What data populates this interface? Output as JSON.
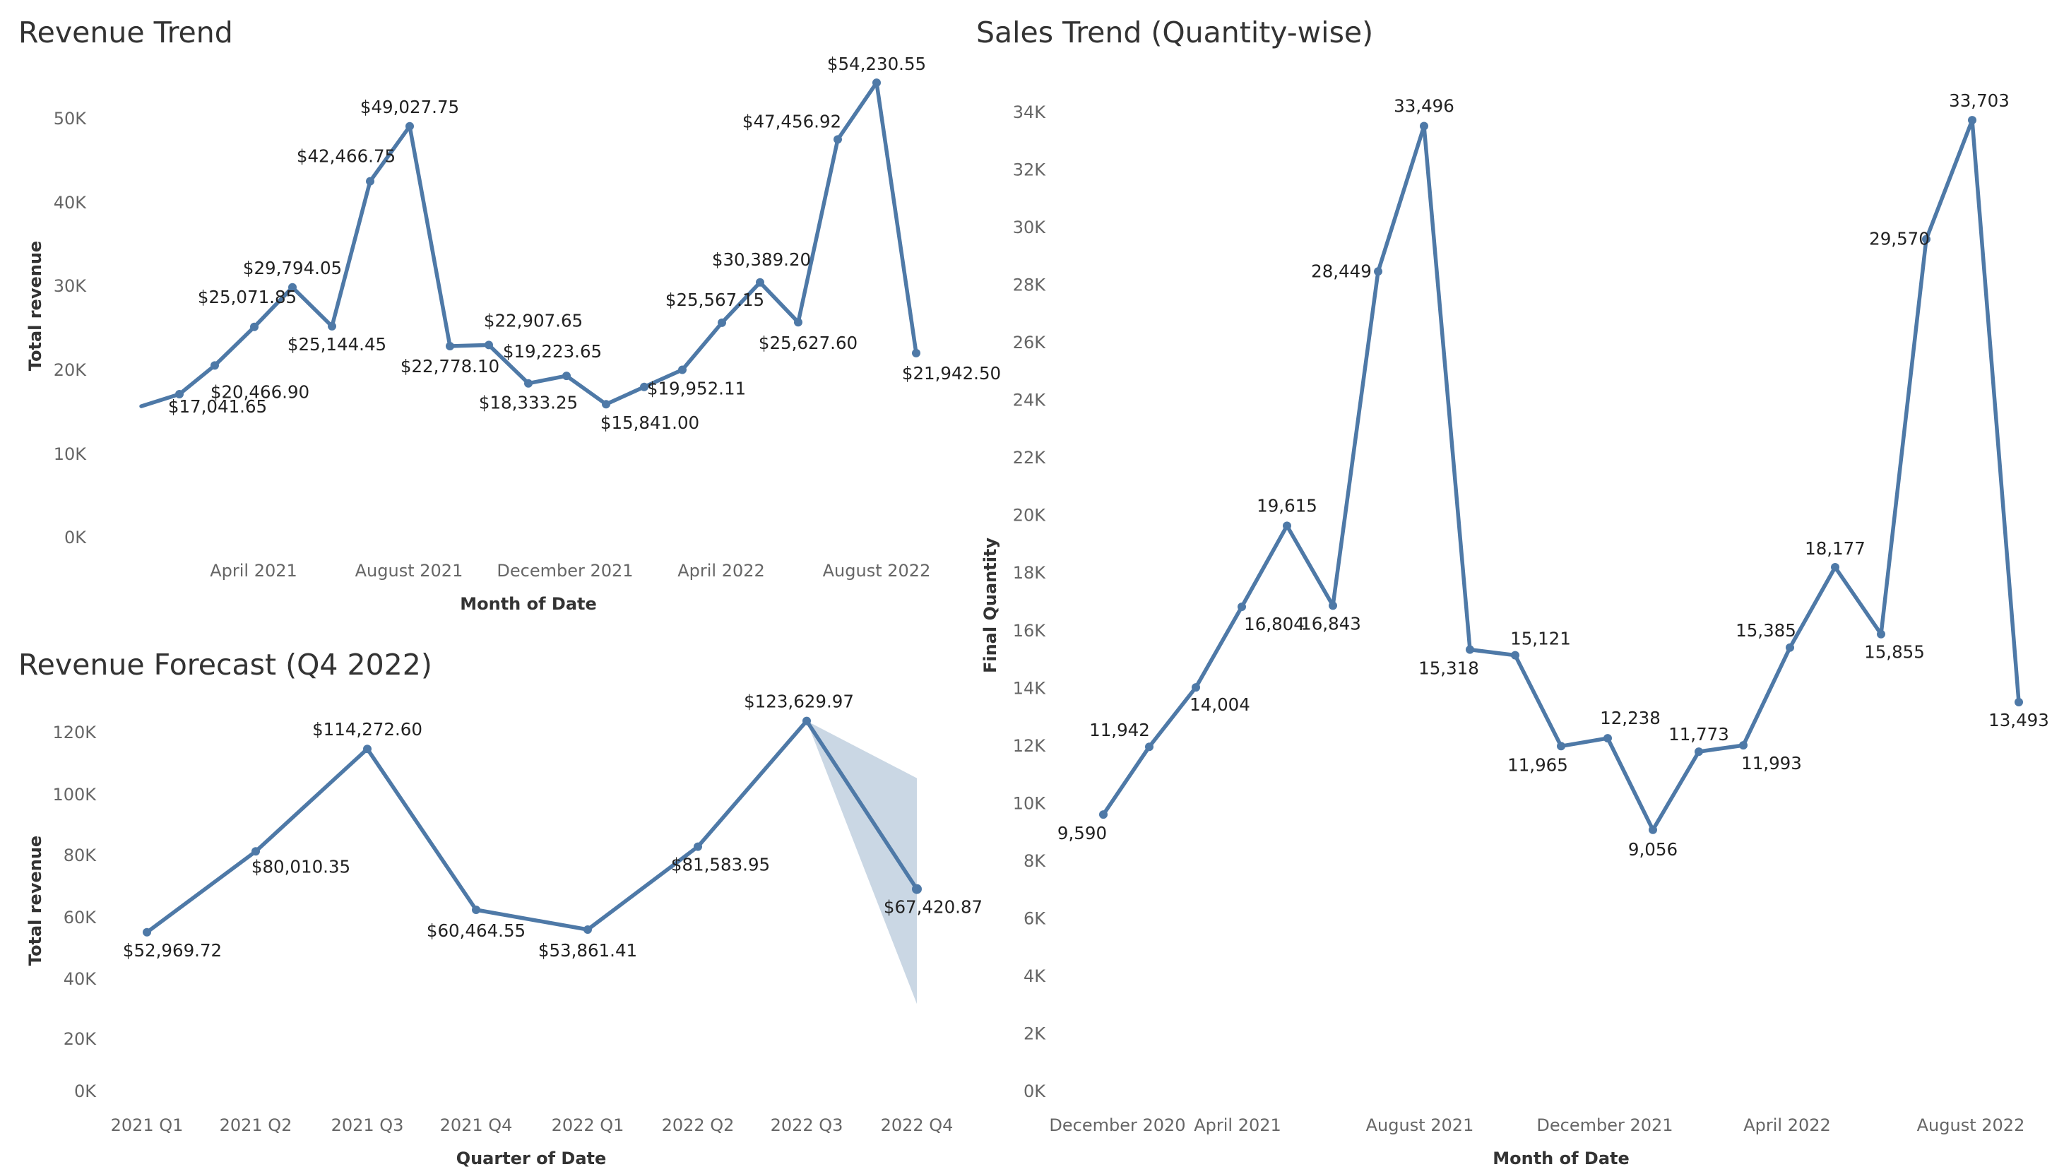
{
  "colors": {
    "series": "#4e79a7",
    "band": "#4e79a7"
  },
  "chart_data": [
    {
      "id": "revenue-trend",
      "type": "line",
      "title": "Revenue Trend",
      "xlabel": "Month of Date",
      "ylabel": "Total revenue",
      "ylim": [
        0,
        54000
      ],
      "yticks": [
        "0K",
        "10K",
        "20K",
        "30K",
        "40K",
        "50K"
      ],
      "xticks": [
        "April 2021",
        "August 2021",
        "December 2021",
        "April 2022",
        "August 2022"
      ],
      "series": [
        {
          "name": "Total revenue",
          "points": [
            {
              "label": "",
              "value": 15600
            },
            {
              "label": "$17,041.65",
              "value": 17041.65
            },
            {
              "label": "$20,466.90",
              "value": 20466.9
            },
            {
              "label": "$25,071.85",
              "value": 25071.85
            },
            {
              "label": "$29,794.05",
              "value": 29794.05
            },
            {
              "label": "$25,144.45",
              "value": 25144.45
            },
            {
              "label": "$42,466.75",
              "value": 42466.75
            },
            {
              "label": "$49,027.75",
              "value": 49027.75
            },
            {
              "label": "$22,778.10",
              "value": 22778.1
            },
            {
              "label": "$22,907.65",
              "value": 22907.65
            },
            {
              "label": "$18,333.25",
              "value": 18333.25
            },
            {
              "label": "$19,223.65",
              "value": 19223.65
            },
            {
              "label": "$15,841.00",
              "value": 15841.0
            },
            {
              "label": "",
              "value": 17900
            },
            {
              "label": "$19,952.11",
              "value": 19952.11
            },
            {
              "label": "$25,567.15",
              "value": 25567.15
            },
            {
              "label": "$30,389.20",
              "value": 30389.2
            },
            {
              "label": "$25,627.60",
              "value": 25627.6
            },
            {
              "label": "$47,456.92",
              "value": 47456.92
            },
            {
              "label": "$54,230.55",
              "value": 54230.55
            },
            {
              "label": "$21,942.50",
              "value": 21942.5
            }
          ]
        }
      ]
    },
    {
      "id": "revenue-forecast",
      "type": "line",
      "title": "Revenue Forecast (Q4 2022)",
      "xlabel": "Quarter of Date",
      "ylabel": "Total revenue",
      "ylim": [
        0,
        125000
      ],
      "yticks": [
        "0K",
        "20K",
        "40K",
        "60K",
        "80K",
        "100K",
        "120K"
      ],
      "categories": [
        "2021 Q1",
        "2021 Q2",
        "2021 Q3",
        "2021 Q4",
        "2022 Q1",
        "2022 Q2",
        "2022 Q3",
        "2022 Q4"
      ],
      "series": [
        {
          "name": "Total revenue",
          "values": [
            52969.72,
            80010.35,
            114272.6,
            60464.55,
            53861.41,
            81583.95,
            123629.97,
            67420.87
          ],
          "labels": [
            "$52,969.72",
            "$80,010.35",
            "$114,272.60",
            "$60,464.55",
            "$53,861.41",
            "$81,583.95",
            "$123,629.97",
            "$67,420.87"
          ],
          "forecast_index": 7,
          "forecast_band": {
            "upper": 104500,
            "lower": 29000
          }
        }
      ]
    },
    {
      "id": "sales-trend",
      "type": "line",
      "title": "Sales Trend (Quantity-wise)",
      "xlabel": "Month of Date",
      "ylabel": "Final Quantity",
      "ylim": [
        0,
        34000
      ],
      "yticks": [
        "0K",
        "2K",
        "4K",
        "6K",
        "8K",
        "10K",
        "12K",
        "14K",
        "16K",
        "18K",
        "20K",
        "22K",
        "24K",
        "26K",
        "28K",
        "30K",
        "32K",
        "34K"
      ],
      "xticks": [
        "December 2020",
        "April 2021",
        "August 2021",
        "December 2021",
        "April 2022",
        "August 2022"
      ],
      "series": [
        {
          "name": "Final Quantity",
          "points": [
            {
              "label": "9,590",
              "value": 9590
            },
            {
              "label": "11,942",
              "value": 11942
            },
            {
              "label": "14,004",
              "value": 14004
            },
            {
              "label": "16,804",
              "value": 16804
            },
            {
              "label": "19,615",
              "value": 19615
            },
            {
              "label": "16,843",
              "value": 16843
            },
            {
              "label": "28,449",
              "value": 28449
            },
            {
              "label": "33,496",
              "value": 33496
            },
            {
              "label": "15,318",
              "value": 15318
            },
            {
              "label": "15,121",
              "value": 15121
            },
            {
              "label": "11,965",
              "value": 11965
            },
            {
              "label": "12,238",
              "value": 12238
            },
            {
              "label": "9,056",
              "value": 9056
            },
            {
              "label": "11,773",
              "value": 11773
            },
            {
              "label": "11,993",
              "value": 11993
            },
            {
              "label": "15,385",
              "value": 15385
            },
            {
              "label": "18,177",
              "value": 18177
            },
            {
              "label": "15,855",
              "value": 15855
            },
            {
              "label": "29,570",
              "value": 29570
            },
            {
              "label": "33,703",
              "value": 33703
            },
            {
              "label": "13,493",
              "value": 13493
            }
          ]
        }
      ]
    }
  ]
}
